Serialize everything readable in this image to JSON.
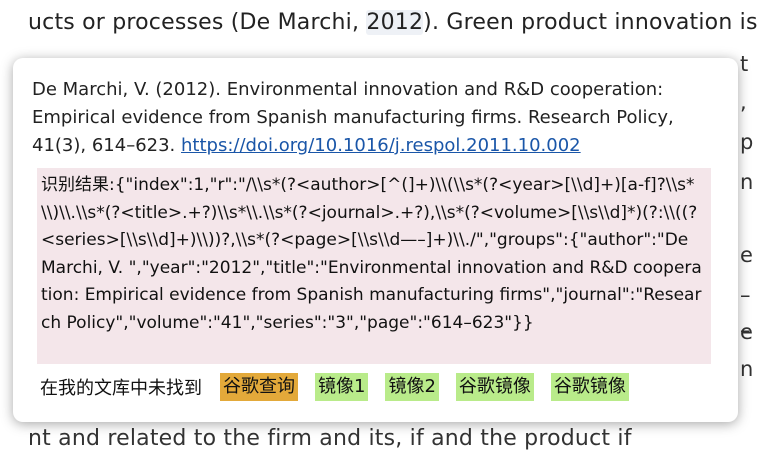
{
  "background": {
    "top_line_pre": "ucts or processes (De Marchi, ",
    "top_line_year": "2012",
    "top_line_post": "). Green product innovation is an",
    "bottom_line": "nt and related to the firm and its, if and the product if",
    "right_glyphs": [
      "t",
      ",",
      "p",
      "n",
      "e",
      "–",
      "–",
      "e",
      "n"
    ]
  },
  "popup": {
    "citation_text": "De Marchi, V. (2012). Environmental innovation and R&D cooperation: Empirical evidence from Spanish manufacturing firms. Research Policy, 41(3), 614–623. ",
    "doi_link": "https://doi.org/10.1016/j.respol.2011.10.002",
    "result_text": "识别结果:{\"index\":1,\"r\":\"/\\\\s*(?<author>[^(]+)\\\\(\\\\s*(?<year>[\\\\d]+)[a-f]?\\\\s*\\\\)\\\\.\\\\s*(?<title>.+?)\\\\s*\\\\.\\\\s*(?<journal>.+?),\\\\s*(?<volume>[\\\\s\\\\d]*)(?:\\\\((?<series>[\\\\s\\\\d]+)\\\\))?,\\\\s*(?<page>[\\\\s\\\\d—–]+)\\\\./\",\"groups\":{\"author\":\"De Marchi, V. \",\"year\":\"2012\",\"title\":\"Environmental innovation and R&D cooperation: Empirical evidence from Spanish manufacturing firms\",\"journal\":\"Research Policy\",\"volume\":\"41\",\"series\":\"3\",\"page\":\"614–623\"}}",
    "not_found_label": "在我的文库中未找到",
    "buttons": {
      "google_search": "谷歌查询",
      "mirror1": "镜像1",
      "mirror2": "镜像2",
      "google_mirror_a": "谷歌镜像",
      "google_mirror_b": "谷歌镜像"
    },
    "colors": {
      "orange_button": "#e3a93a",
      "green_button": "#b9eb8a",
      "result_background": "#f4e6ea",
      "link": "#1a56a8"
    }
  }
}
